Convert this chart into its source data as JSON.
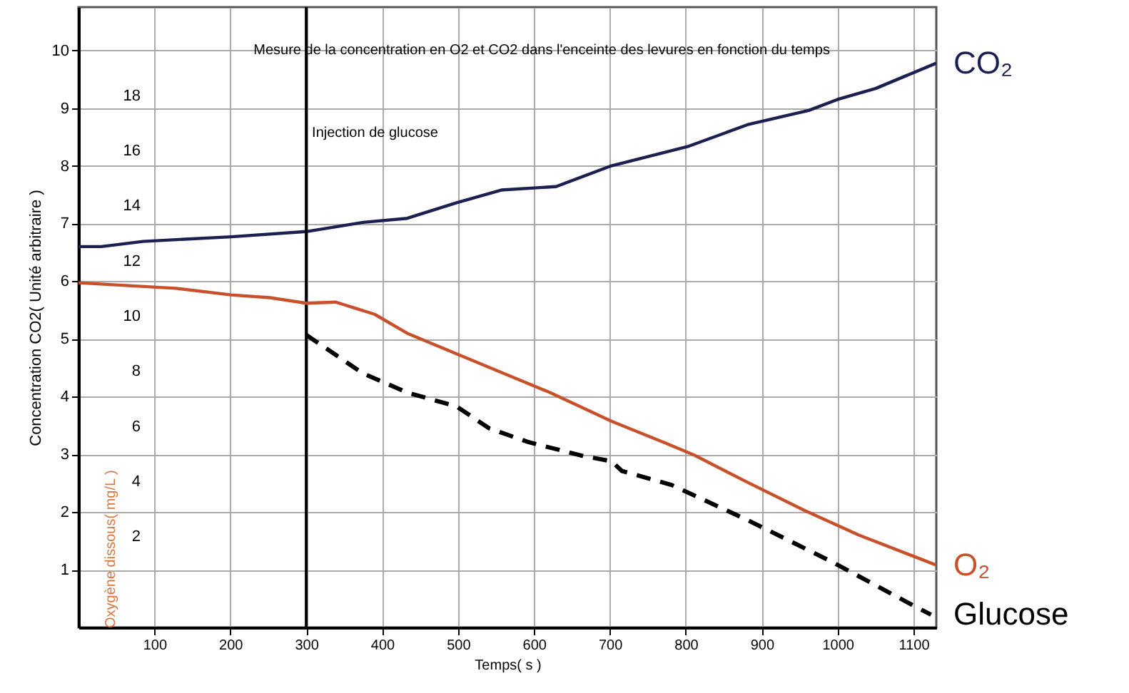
{
  "chart_data": {
    "type": "line",
    "title": "Mesure  de la concentration en O2 et CO2 dans l'enceinte des levures en fonction du temps",
    "xlabel": "Temps( s )",
    "ylabel": "Concentration CO2( Unité arbitraire )",
    "y2label": "Oxygène dissous( mg/L )",
    "xlim": [
      0,
      1130
    ],
    "xticks": [
      100,
      200,
      300,
      400,
      500,
      600,
      700,
      800,
      900,
      1000,
      1100
    ],
    "ylim": [
      0,
      10.75
    ],
    "yticks": [
      1,
      2,
      3,
      4,
      5,
      6,
      7,
      8,
      9,
      10
    ],
    "y2lim": [
      -1.3,
      21.2
    ],
    "y2ticks": [
      2,
      4,
      6,
      8,
      10,
      12,
      14,
      16,
      18
    ],
    "grid": true,
    "legend": false,
    "ref_lines": [
      {
        "axis": "x",
        "value": 300,
        "label": "Injection de glucose",
        "color": "#000000"
      }
    ],
    "series": [
      {
        "name": "CO₂",
        "color": "#1c2050",
        "line_style": "solid",
        "x": [
          0,
          30,
          85,
          201,
          300,
          375,
          433,
          498,
          557,
          629,
          702,
          804,
          883,
          962,
          1000,
          1050,
          1130
        ],
        "values": [
          6.6,
          6.6,
          6.69,
          6.77,
          6.86,
          7.02,
          7.09,
          7.36,
          7.58,
          7.64,
          8.0,
          8.34,
          8.72,
          8.96,
          9.15,
          9.34,
          9.78
        ]
      },
      {
        "name": "O₂",
        "color": "#c8502a",
        "line_style": "solid",
        "axis": "y2",
        "x": [
          0,
          128,
          201,
          252,
          300,
          339,
          390,
          433,
          520,
          622,
          702,
          774,
          811,
          883,
          956,
          1028,
          1101,
          1130
        ],
        "values": [
          11.2,
          11.0,
          10.76,
          10.66,
          10.46,
          10.5,
          10.06,
          9.37,
          8.37,
          7.21,
          6.18,
          5.38,
          4.95,
          3.94,
          2.95,
          2.05,
          1.27,
          0.96
        ]
      },
      {
        "name": "Glucose",
        "color": "#000000",
        "line_style": "dashed",
        "x": [
          300,
          375,
          433,
          498,
          541,
          593,
          665,
          702,
          716,
          781,
          883,
          992,
          1101,
          1123
        ],
        "values": [
          5.07,
          4.4,
          4.07,
          3.83,
          3.45,
          3.21,
          2.97,
          2.88,
          2.71,
          2.47,
          1.85,
          1.14,
          0.37,
          0.22
        ]
      }
    ]
  }
}
